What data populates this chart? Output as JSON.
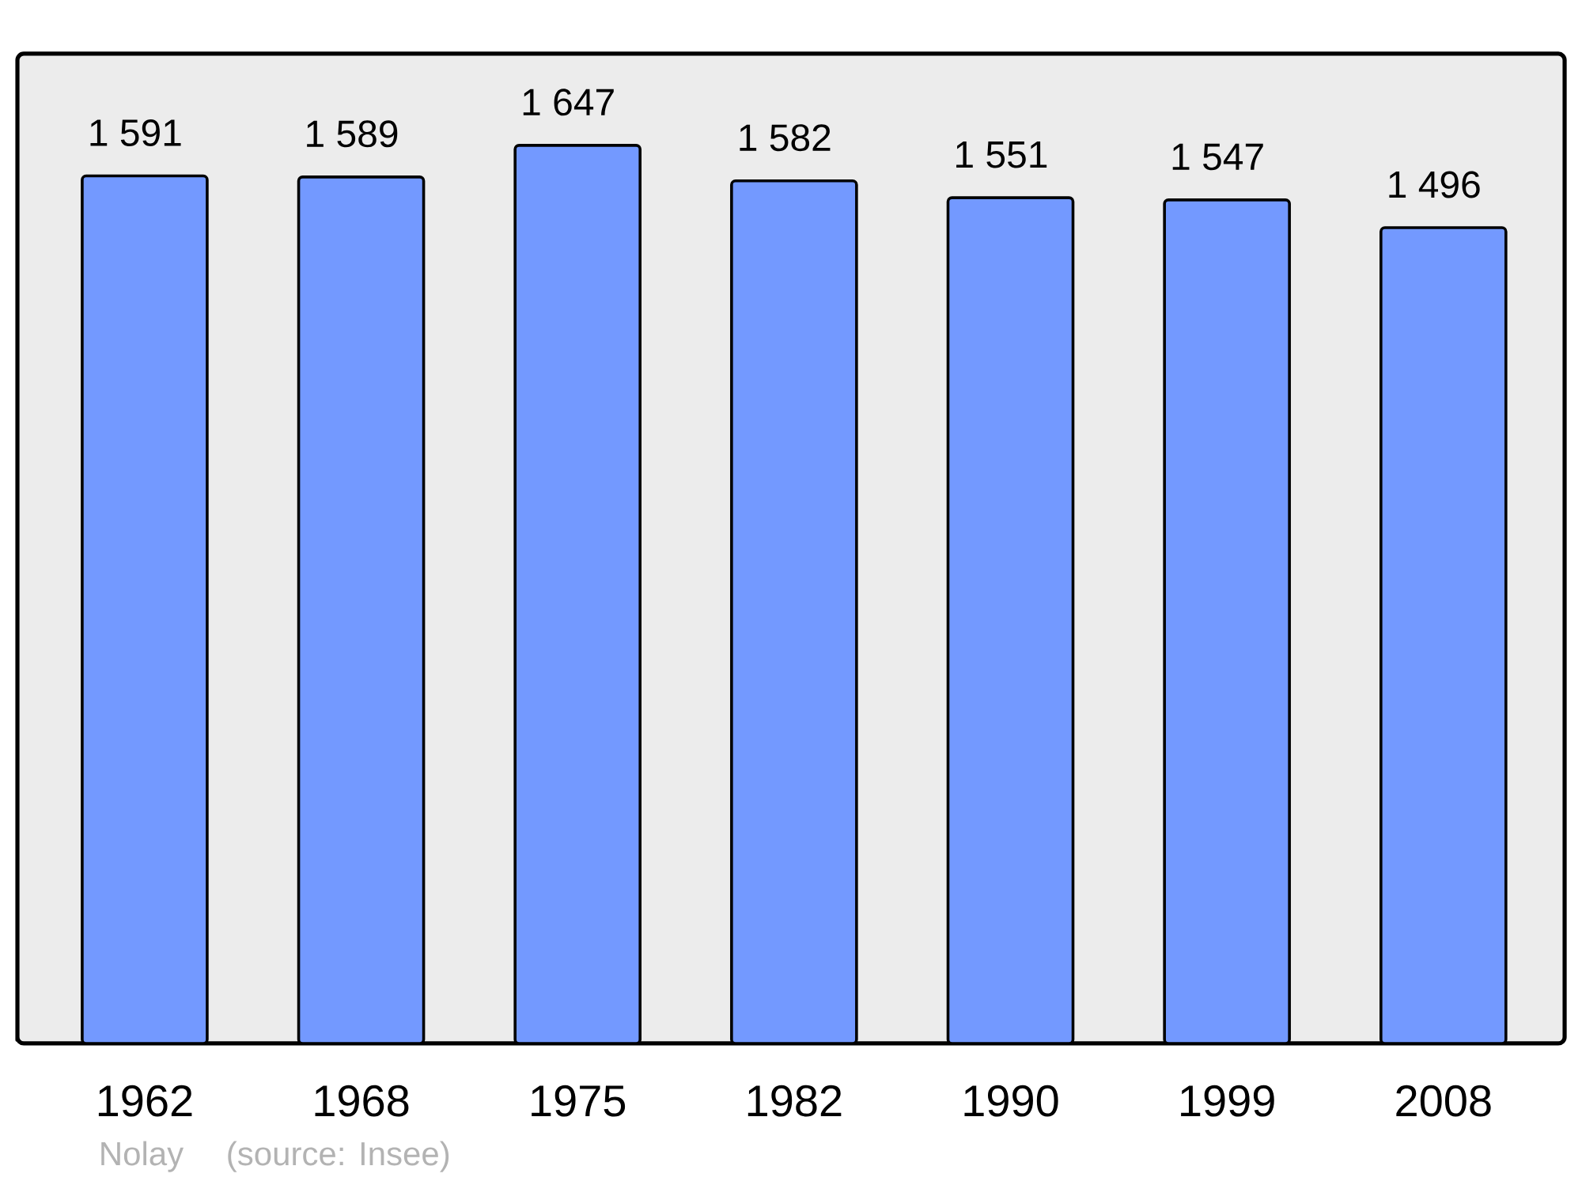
{
  "chart_data": {
    "type": "bar",
    "categories": [
      "1962",
      "1968",
      "1975",
      "1982",
      "1990",
      "1999",
      "2008"
    ],
    "values": [
      1591,
      1589,
      1647,
      1582,
      1551,
      1547,
      1496
    ],
    "value_labels": [
      "1 591",
      "1 589",
      "1 647",
      "1 582",
      "1 551",
      "1 547",
      "1 496"
    ],
    "color": "#7399ff",
    "ylim": [
      0,
      1815
    ],
    "tick_labels": "x",
    "annotations": [
      "Nolay",
      "(source: Insee)"
    ]
  }
}
